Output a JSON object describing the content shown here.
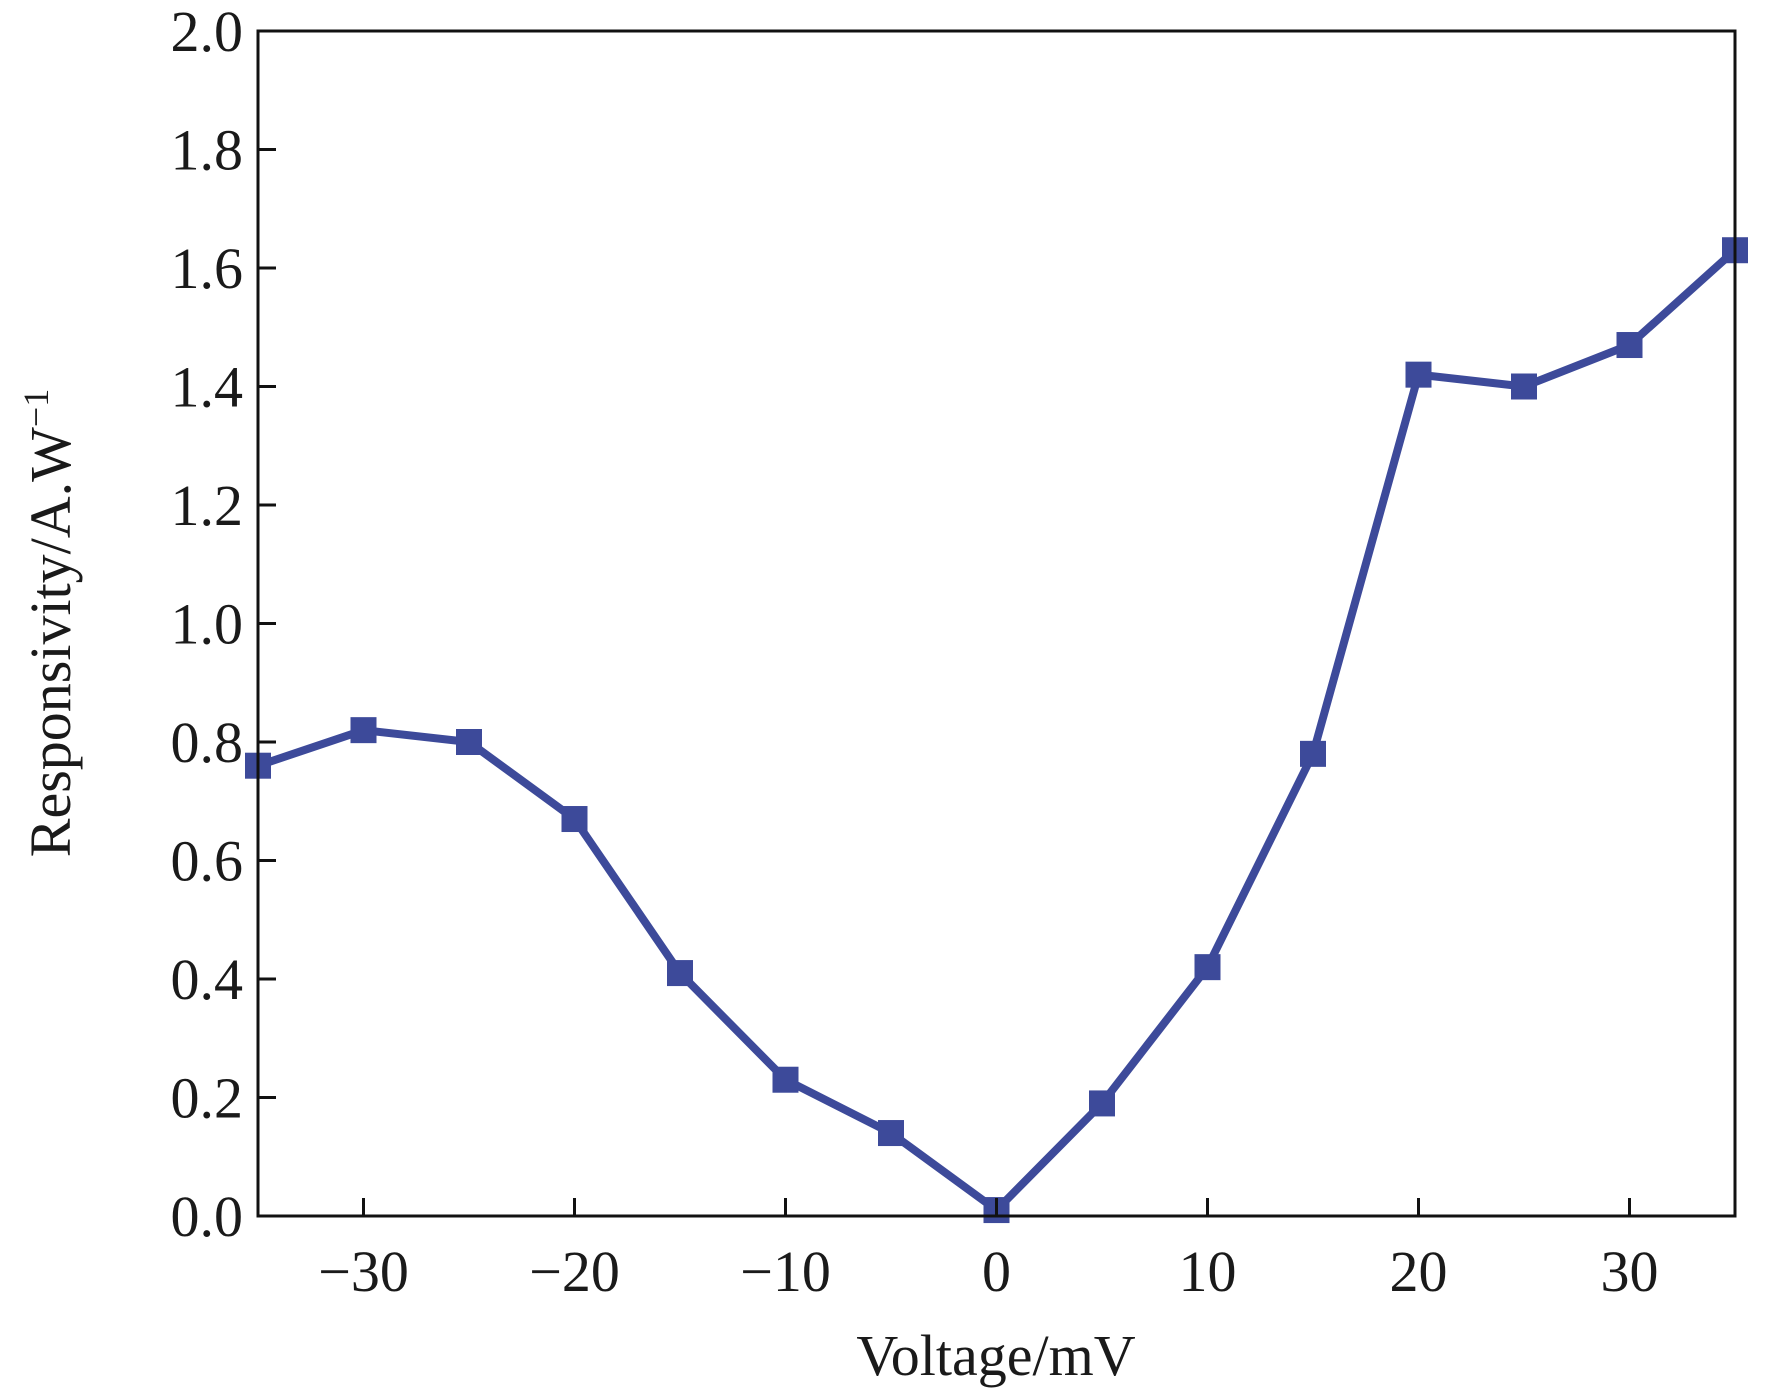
{
  "chart_data": {
    "type": "line",
    "title": "",
    "xlabel": "Voltage/mV",
    "ylabel": "Responsivity/A.W",
    "ylabel_superscript": "−1",
    "xlim": [
      -35,
      35
    ],
    "ylim": [
      0,
      2.0
    ],
    "xticks": [
      -30,
      -20,
      -10,
      0,
      10,
      20,
      30
    ],
    "xtick_labels": [
      "−30",
      "−20",
      "−10",
      "0",
      "10",
      "20",
      "30"
    ],
    "yticks": [
      0,
      0.2,
      0.4,
      0.6,
      0.8,
      1.0,
      1.2,
      1.4,
      1.6,
      1.8,
      2.0
    ],
    "ytick_labels": [
      "0.0",
      "0.2",
      "0.4",
      "0.6",
      "0.8",
      "1.0",
      "1.2",
      "1.4",
      "1.6",
      "1.8",
      "2.0"
    ],
    "grid": false,
    "series": [
      {
        "name": "Responsivity",
        "color": "#3d4a9a",
        "marker": "square",
        "x": [
          -35,
          -30,
          -25,
          -20,
          -15,
          -10,
          -5,
          0,
          5,
          10,
          15,
          20,
          25,
          30,
          35
        ],
        "y": [
          0.76,
          0.82,
          0.8,
          0.67,
          0.41,
          0.23,
          0.14,
          0.01,
          0.19,
          0.42,
          0.78,
          1.42,
          1.4,
          1.47,
          1.63
        ]
      }
    ]
  }
}
